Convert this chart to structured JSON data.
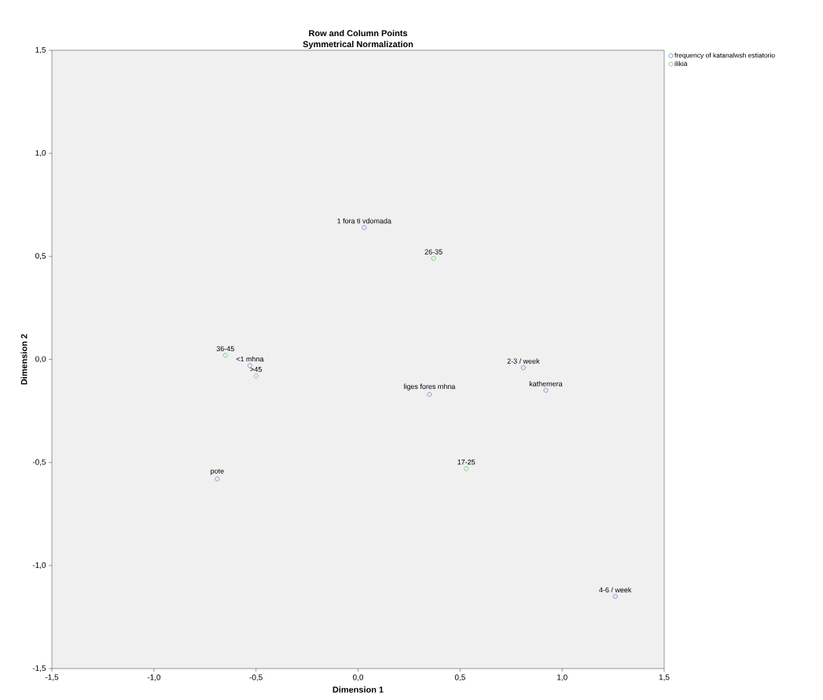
{
  "chart_data": {
    "type": "scatter",
    "title": "Row and Column Points",
    "subtitle": "Symmetrical Normalization",
    "xlabel": "Dimension 1",
    "ylabel": "Dimension 2",
    "xlim": [
      -1.5,
      1.5
    ],
    "ylim": [
      -1.5,
      1.5
    ],
    "xticks": [
      {
        "value": -1.5,
        "label": "-1,5"
      },
      {
        "value": -1.0,
        "label": "-1,0"
      },
      {
        "value": -0.5,
        "label": "-0,5"
      },
      {
        "value": 0,
        "label": "0,0"
      },
      {
        "value": 0.5,
        "label": "0,5"
      },
      {
        "value": 1.0,
        "label": "1,0"
      },
      {
        "value": 1.5,
        "label": "1,5"
      }
    ],
    "yticks": [
      {
        "value": -1.5,
        "label": "-1,5"
      },
      {
        "value": -1.0,
        "label": "-1,0"
      },
      {
        "value": -0.5,
        "label": "-0,5"
      },
      {
        "value": 0,
        "label": "0,0"
      },
      {
        "value": 0.5,
        "label": "0,5"
      },
      {
        "value": 1.0,
        "label": "1,0"
      },
      {
        "value": 1.5,
        "label": "1,5"
      }
    ],
    "marker": "circle",
    "legend": "top right",
    "series": [
      {
        "name": "frequency of katanalwsh estiatorio",
        "color": "#6a7fc8",
        "x": [
          0.03,
          -0.53,
          0.35,
          0.81,
          0.92,
          1.26,
          -0.69
        ],
        "values": [
          0.64,
          -0.03,
          -0.17,
          -0.04,
          -0.15,
          -1.15,
          -0.58
        ]
      },
      {
        "name": "ilikia",
        "color": "#5cc860",
        "x": [
          0.37,
          -0.65,
          -0.5,
          0.53
        ],
        "values": [
          0.49,
          0.02,
          -0.08,
          -0.53
        ]
      }
    ],
    "annotations": [
      {
        "text": "1 fora ti vdomada",
        "x": 0.03,
        "y": 0.64
      },
      {
        "text": "<1 mhna",
        "x": -0.53,
        "y": -0.03
      },
      {
        "text": "liges fores mhna",
        "x": 0.35,
        "y": -0.17
      },
      {
        "text": "2-3 / week",
        "x": 0.81,
        "y": -0.04
      },
      {
        "text": "kathemera",
        "x": 0.92,
        "y": -0.15
      },
      {
        "text": "4-6 / week",
        "x": 1.26,
        "y": -1.15
      },
      {
        "text": "pote",
        "x": -0.69,
        "y": -0.58
      },
      {
        "text": "26-35",
        "x": 0.37,
        "y": 0.49
      },
      {
        "text": "36-45",
        "x": -0.65,
        "y": 0.02
      },
      {
        "text": ">45",
        "x": -0.5,
        "y": -0.08
      },
      {
        "text": "17-25",
        "x": 0.53,
        "y": -0.53
      }
    ]
  }
}
